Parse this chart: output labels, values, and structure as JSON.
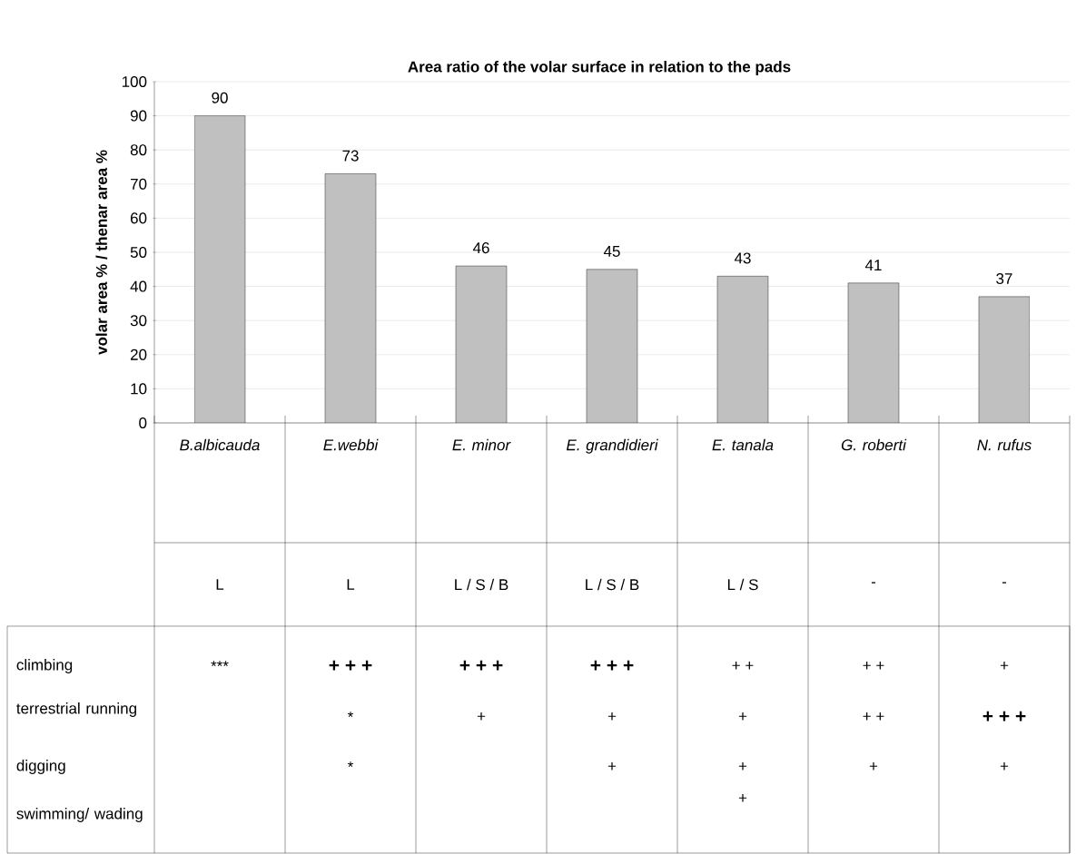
{
  "chart_data": {
    "type": "bar",
    "title": "Area ratio of the volar surface in relation to the pads",
    "ylabel": "volar area % / thenar area %",
    "categories": [
      "B.albicauda",
      "E.webbi",
      "E. minor",
      "E. grandidieri",
      "E. tanala",
      "G. roberti",
      "N. rufus"
    ],
    "values": [
      90,
      73,
      46,
      45,
      43,
      41,
      37
    ],
    "color": "#c0c0c0",
    "ylim": [
      0,
      100
    ],
    "yticks": [
      0,
      10,
      20,
      30,
      40,
      50,
      60,
      70,
      80,
      90,
      100
    ],
    "grid": "y",
    "data_labels": true,
    "annotations": [
      "L",
      "L",
      "L / S / B",
      "L / S / B",
      "L / S",
      "-",
      "-",
      "climbing",
      "***",
      "+ + +",
      "+ + +",
      "+ + +",
      "+ +",
      "+ +",
      "+",
      "terrestrial running",
      "*",
      "+",
      "+",
      "+",
      "+ +",
      "+ + +",
      "digging",
      "*",
      "+",
      "+",
      "+",
      "+",
      "swimming/ wading",
      "+"
    ]
  }
}
